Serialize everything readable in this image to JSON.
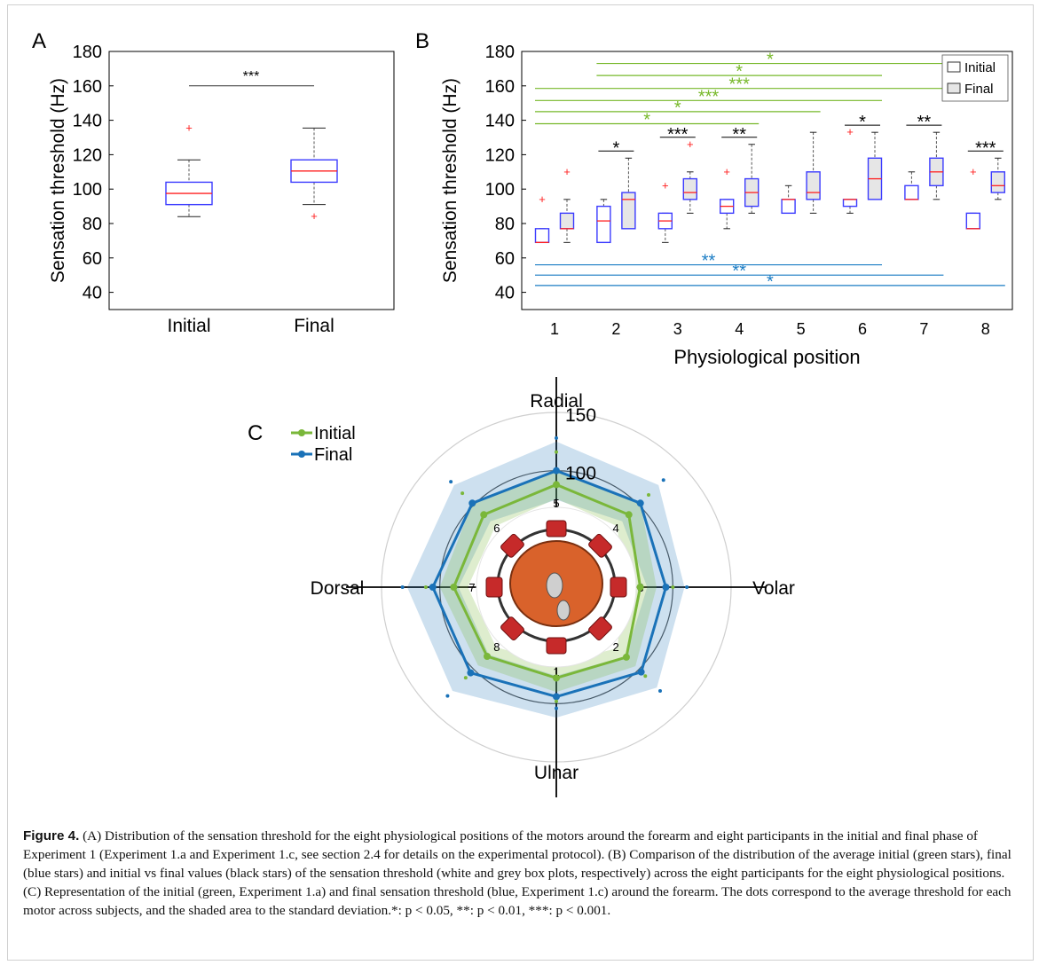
{
  "chart_data": [
    {
      "panel": "A",
      "type": "box",
      "panel_label": "A",
      "ylabel": "Sensation threshold (Hz)",
      "ylim": [
        30,
        180
      ],
      "yticks": [
        40,
        60,
        80,
        100,
        120,
        140,
        160,
        180
      ],
      "categories": [
        "Initial",
        "Final"
      ],
      "boxes": [
        {
          "whisker_low": 84,
          "q1": 91,
          "median": 97.5,
          "q3": 104,
          "whisker_high": 117,
          "outliers": [
            135.5
          ]
        },
        {
          "whisker_low": 91,
          "q1": 104,
          "median": 110.5,
          "q3": 117,
          "whisker_high": 135.5,
          "outliers": [
            84
          ]
        }
      ],
      "significance": [
        {
          "y": 160,
          "label": "***"
        }
      ],
      "colors": {
        "box": "#3b3bff",
        "median": "#ff2020",
        "outlier": "#ff2020",
        "bar": "#333333"
      }
    },
    {
      "panel": "B",
      "type": "box",
      "panel_label": "B",
      "xlabel": "Physiological position",
      "ylabel": "Sensation threshold (Hz)",
      "ylim": [
        30,
        180
      ],
      "yticks": [
        40,
        60,
        80,
        100,
        120,
        140,
        160,
        180
      ],
      "categories": [
        "1",
        "2",
        "3",
        "4",
        "5",
        "6",
        "7",
        "8"
      ],
      "legend": {
        "position": "top-right",
        "entries": [
          "Initial",
          "Final"
        ]
      },
      "series": [
        {
          "name": "Initial",
          "fill": "#ffffff",
          "boxes": [
            {
              "whisker_low": 69,
              "q1": 69,
              "median": 69,
              "q3": 77,
              "whisker_high": 77,
              "outliers": [
                94
              ]
            },
            {
              "whisker_low": 69,
              "q1": 69,
              "median": 81.5,
              "q3": 90,
              "whisker_high": 94,
              "outliers": []
            },
            {
              "whisker_low": 69,
              "q1": 77,
              "median": 81.5,
              "q3": 86,
              "whisker_high": 86,
              "outliers": [
                102
              ]
            },
            {
              "whisker_low": 77,
              "q1": 86,
              "median": 90,
              "q3": 94,
              "whisker_high": 94,
              "outliers": [
                110
              ]
            },
            {
              "whisker_low": 86,
              "q1": 86,
              "median": 94,
              "q3": 94,
              "whisker_high": 102,
              "outliers": []
            },
            {
              "whisker_low": 86,
              "q1": 90,
              "median": 94,
              "q3": 94,
              "whisker_high": 94,
              "outliers": [
                133
              ]
            },
            {
              "whisker_low": 94,
              "q1": 94,
              "median": 94,
              "q3": 102,
              "whisker_high": 110,
              "outliers": []
            },
            {
              "whisker_low": 77,
              "q1": 77,
              "median": 77,
              "q3": 86,
              "whisker_high": 86,
              "outliers": [
                110
              ]
            }
          ]
        },
        {
          "name": "Final",
          "fill": "#e6e6e6",
          "boxes": [
            {
              "whisker_low": 69,
              "q1": 77,
              "median": 77,
              "q3": 86,
              "whisker_high": 94,
              "outliers": [
                110
              ]
            },
            {
              "whisker_low": 77,
              "q1": 77,
              "median": 94,
              "q3": 98,
              "whisker_high": 118,
              "outliers": []
            },
            {
              "whisker_low": 86,
              "q1": 94,
              "median": 98,
              "q3": 106,
              "whisker_high": 110,
              "outliers": [
                126
              ]
            },
            {
              "whisker_low": 86,
              "q1": 90,
              "median": 98,
              "q3": 106,
              "whisker_high": 126,
              "outliers": []
            },
            {
              "whisker_low": 86,
              "q1": 94,
              "median": 98,
              "q3": 110,
              "whisker_high": 133,
              "outliers": []
            },
            {
              "whisker_low": 94,
              "q1": 94,
              "median": 106,
              "q3": 118,
              "whisker_high": 133,
              "outliers": []
            },
            {
              "whisker_low": 94,
              "q1": 102,
              "median": 110,
              "q3": 118,
              "whisker_high": 133,
              "outliers": []
            },
            {
              "whisker_low": 94,
              "q1": 98,
              "median": 102,
              "q3": 110,
              "whisker_high": 118,
              "outliers": []
            }
          ]
        }
      ],
      "significance_pairs": [
        {
          "position": 2,
          "label": "*"
        },
        {
          "position": 3,
          "label": "***"
        },
        {
          "position": 4,
          "label": "**"
        },
        {
          "position": 6,
          "label": "*"
        },
        {
          "position": 7,
          "label": "**"
        },
        {
          "position": 8,
          "label": "***"
        }
      ],
      "significance_green": [
        {
          "from": 1,
          "to": 4,
          "y": 138,
          "label": "*"
        },
        {
          "from": 1,
          "to": 5,
          "y": 145,
          "label": "*"
        },
        {
          "from": 1,
          "to": 6,
          "y": 151.5,
          "label": "***"
        },
        {
          "from": 1,
          "to": 7,
          "y": 158.5,
          "label": "***"
        },
        {
          "from": 2,
          "to": 6,
          "y": 166,
          "label": "*"
        },
        {
          "from": 2,
          "to": 7,
          "y": 173,
          "label": "*"
        }
      ],
      "significance_blue": [
        {
          "from": 1,
          "to": 6,
          "y": 56,
          "label": "**"
        },
        {
          "from": 1,
          "to": 7,
          "y": 50,
          "label": "**"
        },
        {
          "from": 1,
          "to": 8,
          "y": 44,
          "label": "*"
        }
      ],
      "colors": {
        "box": "#3b3bff",
        "median": "#ff2020",
        "outlier": "#ff2020",
        "green": "#77b82a",
        "blue": "#1a7cc4",
        "black": "#000000"
      }
    },
    {
      "panel": "C",
      "type": "radar",
      "panel_label": "C",
      "direction_labels": [
        "Radial",
        "Volar",
        "Ulnar",
        "Dorsal"
      ],
      "radial_ticks": [
        100,
        150
      ],
      "rmax": 150,
      "motor_labels": [
        "5",
        "4",
        "3",
        "2",
        "1",
        "8",
        "7",
        "6"
      ],
      "legend": {
        "position": "top-left",
        "entries": [
          "Initial",
          "Final"
        ]
      },
      "series": [
        {
          "name": "Initial",
          "color": "#7ab73a",
          "values": [
            88,
            88,
            72,
            85,
            78,
            84,
            88,
            88
          ],
          "sd_upper": [
            100,
            102,
            86,
            96,
            90,
            95,
            100,
            102
          ],
          "sd_lower": [
            76,
            74,
            58,
            74,
            66,
            73,
            76,
            74
          ],
          "dots_extra": [
            116,
            112,
            100,
            108,
            98,
            110,
            112,
            114
          ]
        },
        {
          "name": "Final",
          "color": "#1a72b8",
          "values": [
            100,
            102,
            94,
            103,
            94,
            104,
            106,
            102
          ],
          "sd_upper": [
            125,
            124,
            110,
            122,
            112,
            126,
            128,
            124
          ],
          "sd_lower": [
            75,
            80,
            78,
            84,
            76,
            82,
            84,
            80
          ],
          "dots_extra": [
            128,
            130,
            112,
            126,
            104,
            132,
            132,
            128
          ]
        }
      ]
    }
  ],
  "caption": {
    "label": "Figure 4.",
    "text": " (A) Distribution of the sensation threshold for the eight physiological positions of the motors around the forearm and eight participants in the initial and final phase of Experiment 1 (Experiment 1.a and Experiment 1.c, see section 2.4 for details on the experimental protocol). (B) Comparison of the distribution of the average initial (green stars), final (blue stars) and initial vs final values (black stars) of the sensation threshold (white and grey box plots, respectively) across the eight participants for the eight physiological positions. (C) Representation of the initial (green, Experiment 1.a) and final sensation threshold (blue, Experiment 1.c) around the forearm. The dots correspond to the average threshold for each motor across subjects, and the shaded area to the standard deviation.*: p < 0.05, **: p < 0.01, ***: p < 0.001."
  }
}
